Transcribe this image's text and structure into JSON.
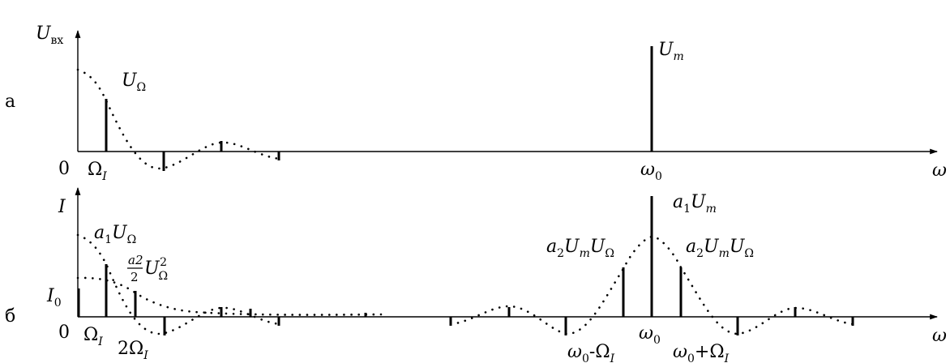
{
  "panel_a": {
    "side_label": "а",
    "y_axis": {
      "base": "U",
      "sub": "вх"
    },
    "x_axis": "ω",
    "origin": "0",
    "labels": {
      "u_omega": {
        "base": "U",
        "sub": "Ω"
      },
      "u_m": {
        "base": "U",
        "sub": "m"
      },
      "omega_i": {
        "base": "Ω",
        "sub": "I"
      },
      "omega_0": {
        "base": "ω",
        "sub": "0"
      }
    }
  },
  "panel_b": {
    "side_label": "б",
    "y_axis": "I",
    "x_axis": "ω",
    "origin": "0",
    "labels": {
      "i0": {
        "base": "I",
        "sub": "0"
      },
      "a1_u_omega": {
        "c": "a",
        "cs": "1",
        "base": "U",
        "sub": "Ω"
      },
      "a2_half": {
        "num": "a2",
        "den": "2",
        "base": "U",
        "sub": "Ω",
        "sup": "2"
      },
      "omega_i": {
        "base": "Ω",
        "sub": "I"
      },
      "two_omega_i": {
        "pre": "2",
        "base": "Ω",
        "sub": "I"
      },
      "a1_um": {
        "c": "a",
        "cs": "1",
        "base": "U",
        "sub": "m"
      },
      "a2_um_uo_left": {
        "c": "a",
        "cs": "2",
        "base": "U",
        "sub": "m",
        "base2": "U",
        "sub2": "Ω"
      },
      "a2_um_uo_right": {
        "c": "a",
        "cs": "2",
        "base": "U",
        "sub": "m",
        "base2": "U",
        "sub2": "Ω"
      },
      "omega_0": {
        "base": "ω",
        "sub": "0"
      },
      "omega0_minus": {
        "b1": "ω",
        "s1": "0",
        "op": "-",
        "b2": "Ω",
        "s2": "I"
      },
      "omega0_plus": {
        "b1": "ω",
        "s1": "0",
        "op": "+",
        "b2": "Ω",
        "s2": "I"
      }
    }
  }
}
